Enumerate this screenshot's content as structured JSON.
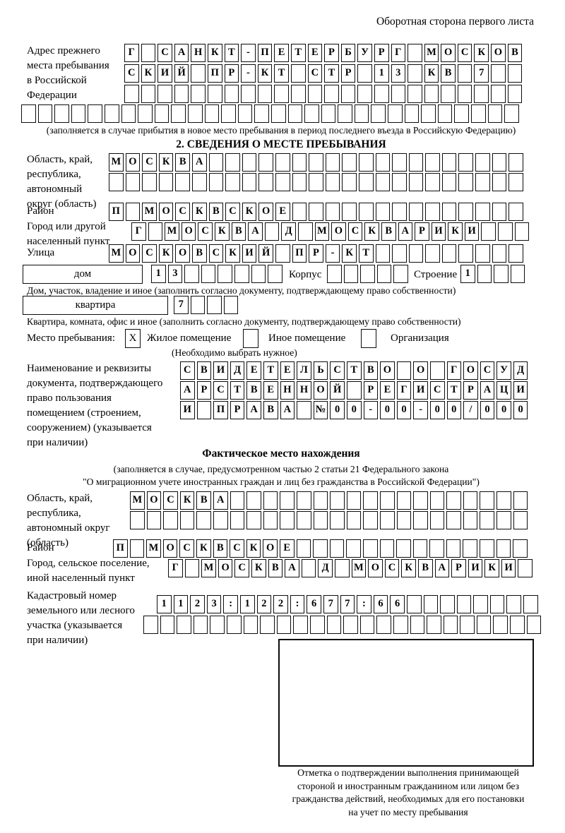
{
  "heading": "Оборотная сторона первого листа",
  "prev_address": {
    "label": [
      "Адрес прежнего",
      "места пребывания",
      "в Российской",
      "Федерации"
    ],
    "row1": {
      "t": "Г САНКТ-ПЕТЕРБУРГ МОСКОВ",
      "n": 24
    },
    "row2": {
      "t": "СКИЙ ПР-КТ СТР 13 КВ 7",
      "n": 24
    },
    "row3": {
      "t": "",
      "n": 24
    },
    "row4": {
      "t": "",
      "n": 30
    },
    "note": "(заполняется в случае прибытия в новое место пребывания в период последнего въезда в Российскую Федерацию)"
  },
  "section2": {
    "title": "2. СВЕДЕНИЯ О МЕСТЕ ПРЕБЫВАНИЯ",
    "oblast": {
      "label": [
        "Область, край,",
        "республика,",
        "автономный",
        "округ (область)"
      ],
      "row1": {
        "t": "МОСКВА",
        "n": 25
      },
      "row2": {
        "t": "",
        "n": 25
      }
    },
    "raion": {
      "label": "Район",
      "row": {
        "t": "П МОСКВСКОЕ",
        "n": 25
      }
    },
    "gorod": {
      "label": [
        "Город или другой",
        "населенный пункт"
      ],
      "row": {
        "t": "Г МОСКВА Д МОСКВАРИКИ",
        "n": 24
      }
    },
    "ulitsa": {
      "label": "Улица",
      "row": {
        "t": "МОСКОВСКИЙ ПР-КТ",
        "n": 25
      }
    },
    "dom": {
      "box_label": "дом",
      "cells": {
        "t": "13",
        "n": 8
      },
      "korpus_label": "Корпус",
      "korpus_cells": {
        "t": "",
        "n": 5
      },
      "stroenie_label": "Строение",
      "stroenie_cells": {
        "t": "1",
        "n": 4
      },
      "note": "Дом, участок, владение и иное (заполнить согласно документу, подтверждающему право собственности)"
    },
    "kvartira": {
      "box_label": "квартира",
      "cells": {
        "t": "7",
        "n": 4
      },
      "note": "Квартира, комната, офис и иное (заполнить согласно документу, подтверждающему право собственности)"
    },
    "mesto": {
      "label": "Место пребывания:",
      "options": [
        {
          "label": "Жилое помещение",
          "mark": "X"
        },
        {
          "label": "Иное помещение",
          "mark": ""
        },
        {
          "label": "Организация",
          "mark": ""
        }
      ],
      "note": "(Необходимо выбрать нужное)"
    },
    "doc": {
      "label": [
        "Наименование и реквизиты",
        "документа, подтверждающего",
        "право пользования",
        "помещением (строением,",
        "сооружением) (указывается",
        "при наличии)"
      ],
      "row1": {
        "t": "СВИДЕТЕЛЬСТВО О ГОСУД",
        "n": 21
      },
      "row2": {
        "t": "АРСТВЕННОЙ РЕГИСТРАЦИ",
        "n": 21
      },
      "row3": {
        "t": "И ПРАВА №00-00-00/000",
        "n": 21
      }
    }
  },
  "fact": {
    "title": "Фактическое место нахождения",
    "note1": "(заполняется в случае, предусмотренном частью 2 статьи 21 Федерального закона",
    "note2": "\"О миграционном учете иностранных граждан и лиц без гражданства в Российской Федерации\")",
    "oblast": {
      "label": [
        "Область, край,",
        "республика,",
        "автономный округ",
        "(область)"
      ],
      "row1": {
        "t": "МОСКВА",
        "n": 24
      },
      "row2": {
        "t": "",
        "n": 24
      }
    },
    "raion": {
      "label": "Район",
      "row": {
        "t": "П МОСКВСКОЕ",
        "n": 25
      }
    },
    "gorod": {
      "label": [
        "Город, сельское поселение,",
        "иной населенный пункт"
      ],
      "row": {
        "t": "Г МОСКВА Д МОСКВАРИКИ",
        "n": 22
      }
    },
    "kadastr": {
      "label": [
        "Кадастровый номер",
        "земельного или лесного",
        "участка (указывается",
        "при наличии)"
      ],
      "row1": {
        "t": "1123:122:677:66",
        "n": 23
      },
      "row2": {
        "t": "",
        "n": 24
      }
    },
    "stamp_note": [
      "Отметка о подтверждении выполнения принимающей",
      "стороной и иностранным гражданином или лицом без",
      "гражданства действий, необходимых для его постановки",
      "на учет по месту пребывания"
    ]
  }
}
